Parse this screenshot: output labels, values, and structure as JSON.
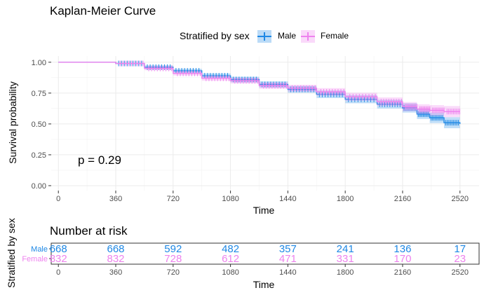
{
  "chart_data": {
    "type": "line",
    "title": "Kaplan-Meier Curve",
    "xlabel": "Time",
    "ylabel": "Survival probability",
    "xlim": [
      -45,
      2640
    ],
    "ylim": [
      -0.04,
      1.05
    ],
    "x_ticks": [
      "0",
      "360",
      "720",
      "1080",
      "1440",
      "1800",
      "2160",
      "2520"
    ],
    "y_ticks": [
      "0.00",
      "0.25",
      "0.50",
      "0.75",
      "1.00"
    ],
    "legend_title": "Stratified by sex",
    "legend_position": "top",
    "grid": true,
    "annotation": "p = 0.29",
    "series": [
      {
        "name": "Male",
        "color": "#1e88e5",
        "x": [
          0,
          360,
          540,
          720,
          900,
          1080,
          1260,
          1440,
          1620,
          1800,
          2000,
          2160,
          2250,
          2330,
          2420,
          2520
        ],
        "values": [
          1.0,
          0.99,
          0.96,
          0.93,
          0.89,
          0.86,
          0.82,
          0.78,
          0.74,
          0.7,
          0.66,
          0.63,
          0.58,
          0.55,
          0.51,
          0.5
        ]
      },
      {
        "name": "Female",
        "color": "#ee82ee",
        "x": [
          0,
          360,
          540,
          720,
          900,
          1080,
          1260,
          1440,
          1620,
          1800,
          2000,
          2160,
          2250,
          2330,
          2420,
          2520
        ],
        "values": [
          1.0,
          0.99,
          0.95,
          0.91,
          0.87,
          0.85,
          0.81,
          0.79,
          0.76,
          0.72,
          0.68,
          0.64,
          0.62,
          0.61,
          0.6,
          0.6
        ]
      }
    ],
    "risk_table": {
      "title": "Number at risk",
      "ylabel": "Stratified by sex",
      "xlabel": "Time",
      "time_points": [
        0,
        360,
        720,
        1080,
        1440,
        1800,
        2160,
        2520
      ],
      "rows": [
        {
          "name": "Male",
          "color": "#1e88e5",
          "values": [
            "668",
            "668",
            "592",
            "482",
            "357",
            "241",
            "136",
            "17"
          ]
        },
        {
          "name": "Female",
          "color": "#ee82ee",
          "values": [
            "832",
            "832",
            "728",
            "612",
            "471",
            "331",
            "170",
            "23"
          ]
        }
      ]
    }
  }
}
